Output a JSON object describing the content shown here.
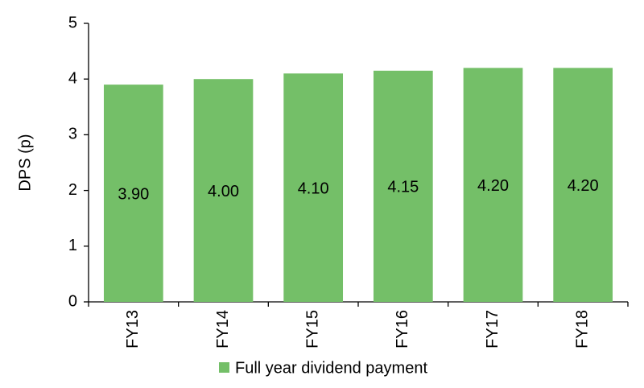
{
  "chart_data": {
    "type": "bar",
    "y_label": "DPS (p)",
    "categories": [
      "FY13",
      "FY14",
      "FY15",
      "FY16",
      "FY17",
      "FY18"
    ],
    "series": [
      {
        "name": "Full year dividend payment",
        "color": "#74bf68",
        "values": [
          3.9,
          4.0,
          4.1,
          4.15,
          4.2,
          4.2
        ],
        "value_labels": [
          "3.90",
          "4.00",
          "4.10",
          "4.15",
          "4.20",
          "4.20"
        ]
      }
    ],
    "ylim": [
      0,
      5
    ],
    "yticks": [
      0,
      1,
      2,
      3,
      4,
      5
    ],
    "grid": false
  }
}
